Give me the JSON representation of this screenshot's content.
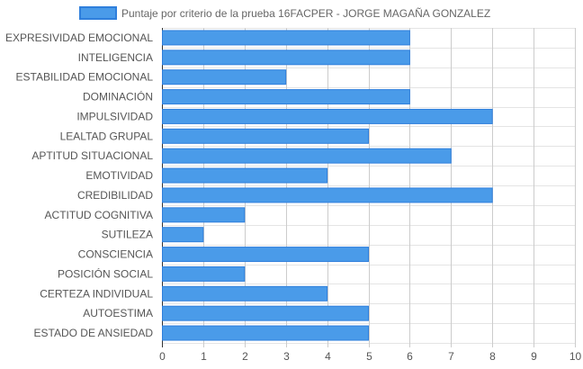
{
  "chart_data": {
    "type": "bar",
    "orientation": "horizontal",
    "categories": [
      "EXPRESIVIDAD EMOCIONAL",
      "INTELIGENCIA",
      "ESTABILIDAD EMOCIONAL",
      "DOMINACIÓN",
      "IMPULSIVIDAD",
      "LEALTAD GRUPAL",
      "APTITUD SITUACIONAL",
      "EMOTIVIDAD",
      "CREDIBILIDAD",
      "ACTITUD COGNITIVA",
      "SUTILEZA",
      "CONSCIENCIA",
      "POSICIÓN SOCIAL",
      "CERTEZA INDIVIDUAL",
      "AUTOESTIMA",
      "ESTADO DE ANSIEDAD"
    ],
    "series": [
      {
        "name": "Puntaje por criterio de la prueba 16FACPER - JORGE MAGAÑA GONZALEZ",
        "values": [
          6,
          6,
          3,
          6,
          8,
          5,
          7,
          4,
          8,
          2,
          1,
          5,
          2,
          4,
          5,
          5
        ],
        "color": "#4a9be9",
        "border_color": "#2f7fdc"
      }
    ],
    "x_ticks": [
      "0",
      "1",
      "2",
      "3",
      "4",
      "5",
      "6",
      "7",
      "8",
      "9",
      "10"
    ],
    "xlim": [
      0,
      10
    ],
    "grid": true,
    "legend_position": "top"
  }
}
